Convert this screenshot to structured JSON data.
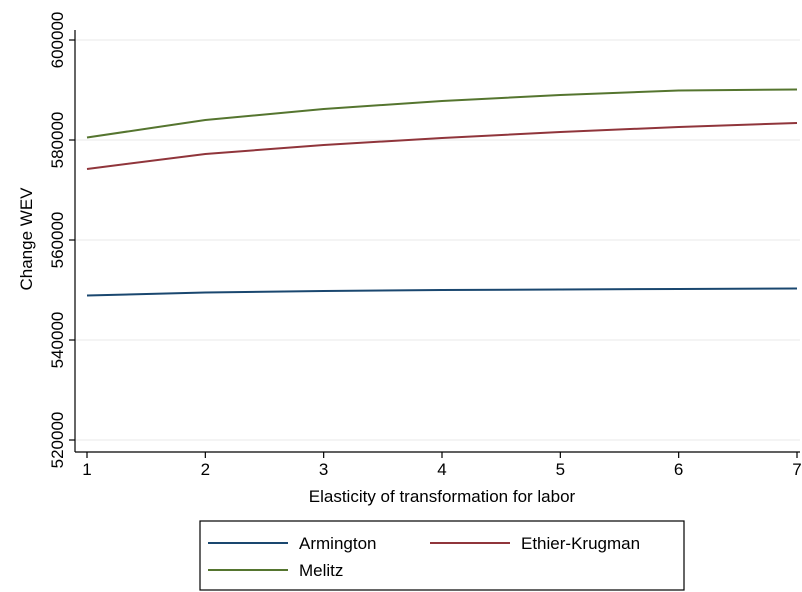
{
  "chart_data": {
    "type": "line",
    "title": "",
    "xlabel": "Elasticity of transformation for labor",
    "ylabel": "Change WEV",
    "x": [
      1,
      2,
      3,
      4,
      5,
      6,
      7
    ],
    "xticks": [
      "1",
      "2",
      "3",
      "4",
      "5",
      "6",
      "7"
    ],
    "yticks": [
      "520000",
      "540000",
      "560000",
      "580000",
      "600000"
    ],
    "xlim": [
      1,
      7
    ],
    "ylim": [
      520000,
      600000
    ],
    "grid": true,
    "legend_position": "bottom",
    "series": [
      {
        "name": "Armington",
        "color": "#1a476f",
        "values": [
          548900,
          549500,
          549800,
          550000,
          550100,
          550200,
          550300
        ]
      },
      {
        "name": "Ethier-Krugman",
        "color": "#90353b",
        "values": [
          574200,
          577200,
          579000,
          580400,
          581600,
          582600,
          583400
        ]
      },
      {
        "name": "Melitz",
        "color": "#55752f",
        "values": [
          580500,
          584000,
          586200,
          587800,
          589000,
          589900,
          590100
        ]
      }
    ]
  }
}
